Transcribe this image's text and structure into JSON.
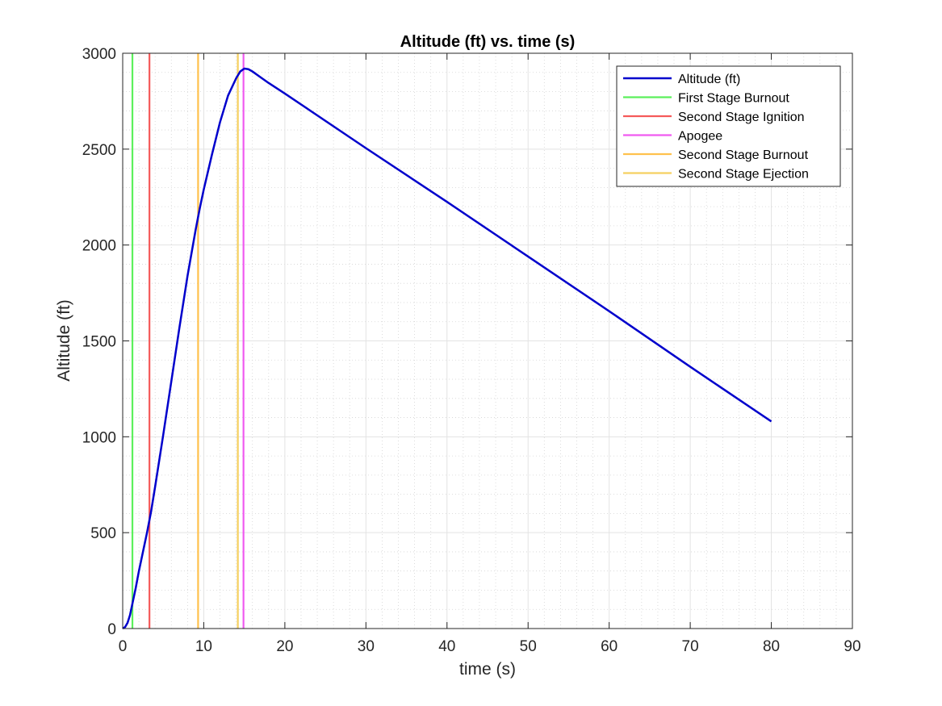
{
  "chart_data": {
    "type": "line",
    "title": "Altitude (ft) vs. time (s)",
    "xlabel": "time (s)",
    "ylabel": "Altitude (ft)",
    "xlim": [
      0,
      90
    ],
    "ylim": [
      0,
      3000
    ],
    "x_ticks": [
      0,
      10,
      20,
      30,
      40,
      50,
      60,
      70,
      80,
      90
    ],
    "y_ticks": [
      0,
      500,
      1000,
      1500,
      2000,
      2500,
      3000
    ],
    "grid": "major and minor",
    "legend_position": "top-right",
    "series": [
      {
        "name": "Altitude (ft)",
        "color": "#0000cc",
        "points": [
          [
            0,
            0
          ],
          [
            0.3,
            8
          ],
          [
            0.6,
            30
          ],
          [
            0.9,
            70
          ],
          [
            1.2,
            130
          ],
          [
            1.6,
            210
          ],
          [
            2.0,
            300
          ],
          [
            2.5,
            400
          ],
          [
            3.0,
            500
          ],
          [
            3.5,
            610
          ],
          [
            4.0,
            740
          ],
          [
            5.0,
            1010
          ],
          [
            6.0,
            1290
          ],
          [
            7.0,
            1570
          ],
          [
            8.0,
            1840
          ],
          [
            9.0,
            2080
          ],
          [
            9.5,
            2190
          ],
          [
            10.0,
            2290
          ],
          [
            11.0,
            2470
          ],
          [
            12.0,
            2640
          ],
          [
            13.0,
            2780
          ],
          [
            14.0,
            2870
          ],
          [
            14.5,
            2905
          ],
          [
            15.0,
            2920
          ],
          [
            15.5,
            2917
          ],
          [
            16.0,
            2905
          ],
          [
            17.0,
            2875
          ],
          [
            18.0,
            2845
          ],
          [
            20.0,
            2790
          ],
          [
            30.0,
            2505
          ],
          [
            40.0,
            2225
          ],
          [
            50.0,
            1940
          ],
          [
            60.0,
            1655
          ],
          [
            70.0,
            1365
          ],
          [
            80.0,
            1080
          ]
        ]
      }
    ],
    "events": [
      {
        "name": "First Stage Burnout",
        "color": "#5cf05c",
        "x": 1.2
      },
      {
        "name": "Second Stage Ignition",
        "color": "#f55a5a",
        "x": 3.3
      },
      {
        "name": "Apogee",
        "color": "#f05af0",
        "x": 14.9
      },
      {
        "name": "Second Stage Burnout",
        "color": "#ffc14d",
        "x": 9.3
      },
      {
        "name": "Second Stage Ejection",
        "color": "#f5d060",
        "x": 14.2
      }
    ]
  }
}
